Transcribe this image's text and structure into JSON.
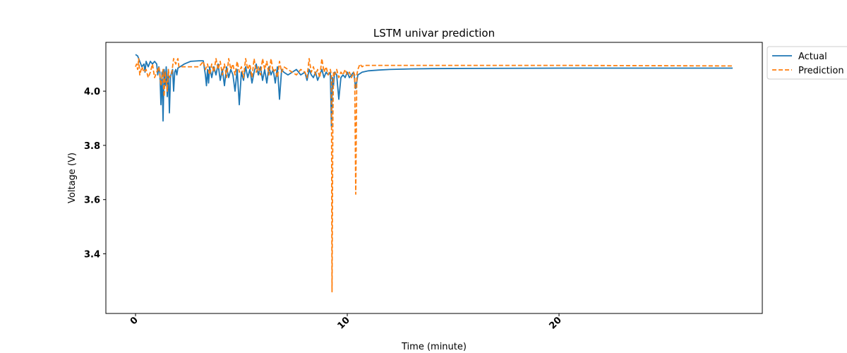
{
  "chart_data": {
    "type": "line",
    "title": "LSTM univar prediction",
    "xlabel": "Time (minute)",
    "ylabel": "Voltage (V)",
    "xlim": [
      -1.4,
      29.6
    ],
    "ylim": [
      3.18,
      4.18
    ],
    "xticks": [
      0,
      10,
      20
    ],
    "xtick_labels": [
      "0",
      "10",
      "20"
    ],
    "yticks": [
      3.4,
      3.6,
      3.8,
      4.0
    ],
    "ytick_labels": [
      "3.4",
      "3.6",
      "3.8",
      "4.0"
    ],
    "grid": false,
    "legend_position": "outside-top-right",
    "series": [
      {
        "name": "Actual",
        "color": "#1f77b4",
        "dash": "solid",
        "x": [
          0.0,
          0.1,
          0.2,
          0.3,
          0.4,
          0.45,
          0.5,
          0.6,
          0.7,
          0.8,
          0.9,
          1.0,
          1.05,
          1.1,
          1.15,
          1.2,
          1.25,
          1.3,
          1.35,
          1.4,
          1.45,
          1.5,
          1.55,
          1.6,
          1.65,
          1.7,
          1.75,
          1.8,
          1.85,
          1.9,
          1.95,
          2.0,
          2.1,
          2.3,
          2.6,
          3.0,
          3.2,
          3.3,
          3.35,
          3.4,
          3.45,
          3.5,
          3.6,
          3.7,
          3.8,
          3.9,
          4.0,
          4.1,
          4.2,
          4.3,
          4.4,
          4.5,
          4.6,
          4.7,
          4.8,
          4.9,
          5.0,
          5.1,
          5.2,
          5.3,
          5.4,
          5.5,
          5.6,
          5.7,
          5.8,
          5.9,
          6.0,
          6.1,
          6.2,
          6.3,
          6.4,
          6.5,
          6.6,
          6.7,
          6.8,
          6.9,
          7.0,
          7.2,
          7.4,
          7.6,
          7.8,
          8.0,
          8.1,
          8.2,
          8.3,
          8.4,
          8.5,
          8.6,
          8.7,
          8.8,
          8.9,
          9.0,
          9.1,
          9.2,
          9.25,
          9.3,
          9.35,
          9.4,
          9.5,
          9.6,
          9.7,
          9.8,
          9.9,
          10.0,
          10.1,
          10.2,
          10.3,
          10.4,
          10.5,
          10.6,
          10.7,
          11.0,
          11.5,
          12.0,
          13.0,
          14.0,
          16.0,
          20.0,
          28.2
        ],
        "y": [
          4.135,
          4.13,
          4.11,
          4.09,
          4.1,
          4.07,
          4.11,
          4.09,
          4.11,
          4.1,
          4.11,
          4.1,
          4.06,
          4.09,
          4.07,
          3.95,
          4.07,
          3.89,
          4.08,
          4.02,
          4.09,
          3.98,
          4.08,
          3.92,
          4.05,
          4.07,
          4.08,
          4.0,
          4.07,
          4.08,
          4.06,
          4.085,
          4.09,
          4.1,
          4.11,
          4.112,
          4.112,
          4.06,
          4.02,
          4.08,
          4.03,
          4.09,
          4.05,
          4.09,
          4.06,
          4.1,
          4.04,
          4.08,
          4.02,
          4.09,
          4.05,
          4.08,
          4.06,
          4.0,
          4.08,
          3.95,
          4.07,
          4.04,
          4.09,
          4.05,
          4.08,
          4.03,
          4.07,
          4.1,
          4.06,
          4.09,
          4.04,
          4.08,
          4.03,
          4.09,
          4.06,
          4.08,
          4.03,
          4.09,
          3.97,
          4.08,
          4.07,
          4.06,
          4.07,
          4.08,
          4.06,
          4.07,
          4.04,
          4.08,
          4.06,
          4.05,
          4.07,
          4.04,
          4.06,
          4.08,
          4.05,
          4.07,
          4.06,
          4.07,
          3.87,
          4.05,
          4.02,
          4.07,
          4.06,
          3.97,
          4.05,
          4.06,
          4.05,
          4.07,
          4.05,
          4.06,
          4.07,
          4.01,
          4.06,
          4.065,
          4.07,
          4.075,
          4.078,
          4.08,
          4.082,
          4.083,
          4.084,
          4.085,
          4.085
        ]
      },
      {
        "name": "Prediction",
        "color": "#ff7f0e",
        "dash": "dashed",
        "x": [
          0.0,
          0.05,
          0.1,
          0.15,
          0.2,
          0.3,
          0.4,
          0.5,
          0.6,
          0.7,
          0.8,
          0.9,
          1.0,
          1.1,
          1.15,
          1.2,
          1.3,
          1.35,
          1.4,
          1.5,
          1.55,
          1.6,
          1.7,
          1.8,
          1.9,
          2.0,
          2.05,
          2.1,
          2.2,
          2.5,
          3.0,
          3.2,
          3.3,
          3.4,
          3.5,
          3.6,
          3.7,
          3.8,
          3.9,
          4.0,
          4.1,
          4.2,
          4.3,
          4.4,
          4.5,
          4.6,
          4.7,
          4.8,
          4.9,
          5.0,
          5.1,
          5.2,
          5.3,
          5.4,
          5.5,
          5.6,
          5.7,
          5.8,
          5.9,
          6.0,
          6.1,
          6.2,
          6.3,
          6.4,
          6.5,
          6.6,
          6.7,
          6.8,
          6.9,
          7.0,
          7.2,
          7.4,
          7.6,
          7.8,
          8.0,
          8.1,
          8.2,
          8.3,
          8.4,
          8.5,
          8.6,
          8.7,
          8.8,
          8.9,
          9.0,
          9.1,
          9.2,
          9.25,
          9.28,
          9.32,
          9.35,
          9.4,
          9.5,
          9.6,
          9.7,
          9.8,
          9.9,
          10.0,
          10.1,
          10.2,
          10.3,
          10.35,
          10.4,
          10.45,
          10.5,
          10.6,
          10.7,
          10.8,
          11.0,
          12.0,
          15.0,
          20.0,
          28.2
        ],
        "y": [
          4.09,
          4.1,
          4.08,
          4.12,
          4.06,
          4.09,
          4.07,
          4.08,
          4.05,
          4.07,
          4.1,
          4.05,
          4.07,
          4.09,
          4.06,
          4.02,
          4.08,
          3.98,
          4.07,
          4.0,
          4.08,
          4.05,
          4.06,
          4.12,
          4.1,
          4.12,
          4.09,
          4.09,
          4.09,
          4.09,
          4.09,
          4.11,
          4.08,
          4.1,
          4.06,
          4.1,
          4.07,
          4.12,
          4.08,
          4.11,
          4.06,
          4.1,
          4.05,
          4.12,
          4.08,
          4.1,
          4.06,
          4.11,
          4.07,
          4.09,
          4.05,
          4.12,
          4.08,
          4.1,
          4.05,
          4.12,
          4.07,
          4.09,
          4.06,
          4.12,
          4.08,
          4.11,
          4.06,
          4.12,
          4.07,
          4.08,
          4.05,
          4.11,
          4.07,
          4.09,
          4.08,
          4.07,
          4.06,
          4.08,
          4.07,
          4.05,
          4.12,
          4.07,
          4.09,
          4.06,
          4.08,
          4.05,
          4.12,
          4.07,
          4.09,
          4.06,
          4.08,
          4.06,
          3.26,
          3.9,
          4.07,
          4.06,
          4.08,
          4.05,
          4.07,
          4.06,
          4.08,
          4.06,
          4.07,
          4.05,
          4.07,
          4.06,
          3.62,
          4.06,
          4.08,
          4.1,
          4.09,
          4.095,
          4.095,
          4.095,
          4.095,
          4.095,
          4.093
        ]
      }
    ]
  }
}
